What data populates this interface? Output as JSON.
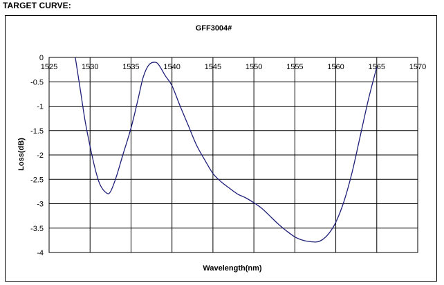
{
  "heading": "TARGET CURVE:",
  "chart_data": {
    "type": "line",
    "title": "GFF3004#",
    "xlabel": "Wavelength(nm)",
    "ylabel": "Loss(dB)",
    "xlim": [
      1525,
      1570
    ],
    "ylim": [
      -4,
      0
    ],
    "xticks": [
      1525,
      1530,
      1535,
      1540,
      1545,
      1550,
      1555,
      1560,
      1565,
      1570
    ],
    "yticks": [
      0,
      -0.5,
      -1,
      -1.5,
      -2,
      -2.5,
      -3,
      -3.5,
      -4
    ],
    "grid": true,
    "line_color": "#1f1f7a",
    "series": [
      {
        "x": [
          1528.2,
          1528.8,
          1529.5,
          1530.5,
          1531.2,
          1532.0,
          1532.5,
          1533.2,
          1534.0,
          1535.0,
          1535.8,
          1536.5,
          1537.2,
          1538.0,
          1538.5,
          1539.2,
          1540.0,
          1541.0,
          1542.0,
          1543.0,
          1544.0,
          1545.0,
          1546.0,
          1547.0,
          1548.0,
          1549.0,
          1550.0,
          1551.0,
          1552.0,
          1553.0,
          1554.0,
          1555.0,
          1556.0,
          1557.0,
          1557.8,
          1558.5,
          1559.2,
          1560.0,
          1561.0,
          1562.0,
          1563.0,
          1564.0,
          1565.0
        ],
        "y": [
          0.0,
          -0.65,
          -1.4,
          -2.2,
          -2.6,
          -2.78,
          -2.75,
          -2.45,
          -2.0,
          -1.45,
          -0.9,
          -0.4,
          -0.15,
          -0.1,
          -0.18,
          -0.38,
          -0.58,
          -1.0,
          -1.4,
          -1.8,
          -2.1,
          -2.38,
          -2.55,
          -2.68,
          -2.8,
          -2.88,
          -2.98,
          -3.1,
          -3.26,
          -3.42,
          -3.56,
          -3.68,
          -3.75,
          -3.78,
          -3.78,
          -3.72,
          -3.6,
          -3.38,
          -2.95,
          -2.35,
          -1.6,
          -0.85,
          -0.2
        ]
      }
    ]
  }
}
